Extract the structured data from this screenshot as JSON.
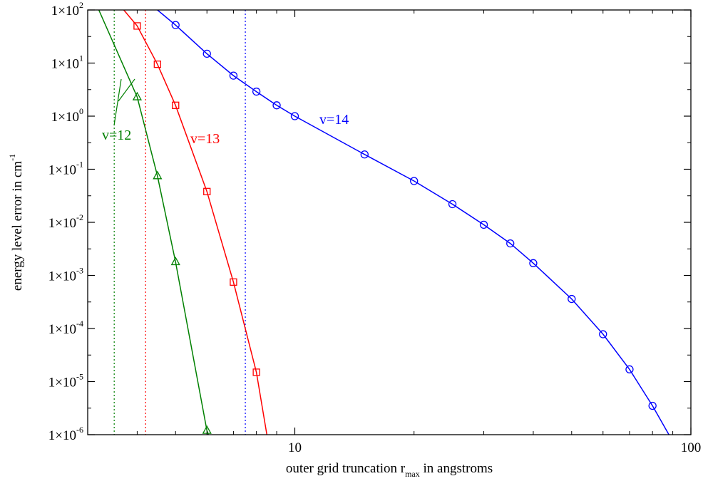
{
  "chart_data": {
    "type": "line",
    "xlabel": "outer grid truncation r",
    "xlabel_sub": "max",
    "xlabel_after": " in angstroms",
    "ylabel": "energy level error in cm",
    "ylabel_sup": "-1",
    "xscale": "log",
    "yscale": "log",
    "xlim": [
      3.0,
      100
    ],
    "ylim": [
      1e-06,
      100
    ],
    "grid": false,
    "x_ticks": [
      {
        "value": 10,
        "label": "10"
      },
      {
        "value": 100,
        "label": "100"
      }
    ],
    "y_ticks": [
      {
        "value": 100,
        "base": "1×10",
        "exp": "2"
      },
      {
        "value": 10,
        "base": "1×10",
        "exp": "1"
      },
      {
        "value": 1,
        "base": "1×10",
        "exp": "0"
      },
      {
        "value": 0.1,
        "base": "1×10",
        "exp": "-1"
      },
      {
        "value": 0.01,
        "base": "1×10",
        "exp": "-2"
      },
      {
        "value": 0.001,
        "base": "1×10",
        "exp": "-3"
      },
      {
        "value": 0.0001,
        "base": "1×10",
        "exp": "-4"
      },
      {
        "value": 1e-05,
        "base": "1×10",
        "exp": "-5"
      },
      {
        "value": 1e-06,
        "base": "1×10",
        "exp": "-6"
      }
    ],
    "series": [
      {
        "name": "v=12",
        "color": "#008000",
        "marker": "triangle",
        "line": [
          [
            3.2,
            100
          ],
          [
            4.0,
            2.3
          ],
          [
            4.5,
            0.075
          ],
          [
            5.0,
            0.0018
          ],
          [
            6.0,
            1.2e-06
          ],
          [
            6.05,
            1e-06
          ]
        ],
        "points": [
          [
            4.0,
            2.3
          ],
          [
            4.5,
            0.075
          ],
          [
            5.0,
            0.0018
          ],
          [
            6.0,
            1.2e-06
          ]
        ],
        "vline_x": 3.5,
        "label_value": "v=12"
      },
      {
        "name": "v=13",
        "color": "#ff0000",
        "marker": "square",
        "line": [
          [
            3.7,
            100
          ],
          [
            4.0,
            50
          ],
          [
            4.5,
            9.5
          ],
          [
            5.0,
            1.6
          ],
          [
            6.0,
            0.038
          ],
          [
            7.0,
            0.00075
          ],
          [
            8.0,
            1.5e-05
          ],
          [
            8.5,
            1e-06
          ]
        ],
        "points": [
          [
            4.0,
            50
          ],
          [
            4.5,
            9.5
          ],
          [
            5.0,
            1.6
          ],
          [
            6.0,
            0.038
          ],
          [
            7.0,
            0.00075
          ],
          [
            8.0,
            1.5e-05
          ]
        ],
        "vline_x": 4.2,
        "label_value": "v=13"
      },
      {
        "name": "v=14",
        "color": "#0000ff",
        "marker": "circle",
        "line": [
          [
            4.5,
            100
          ],
          [
            5.0,
            52
          ],
          [
            6.0,
            15
          ],
          [
            7.0,
            5.8
          ],
          [
            8.0,
            2.9
          ],
          [
            9.0,
            1.6
          ],
          [
            10.0,
            1.0
          ],
          [
            15.0,
            0.19
          ],
          [
            20.0,
            0.06
          ],
          [
            25.0,
            0.022
          ],
          [
            30.0,
            0.009
          ],
          [
            35.0,
            0.004
          ],
          [
            40.0,
            0.0017
          ],
          [
            50.0,
            0.00036
          ],
          [
            60.0,
            7.8e-05
          ],
          [
            70.0,
            1.7e-05
          ],
          [
            80.0,
            3.5e-06
          ],
          [
            88.0,
            1e-06
          ]
        ],
        "points": [
          [
            5.0,
            52
          ],
          [
            6.0,
            15
          ],
          [
            7.0,
            5.8
          ],
          [
            8.0,
            2.9
          ],
          [
            9.0,
            1.6
          ],
          [
            10.0,
            1.0
          ],
          [
            15.0,
            0.19
          ],
          [
            20.0,
            0.06
          ],
          [
            25.0,
            0.022
          ],
          [
            30.0,
            0.009
          ],
          [
            35.0,
            0.004
          ],
          [
            40.0,
            0.0017
          ],
          [
            50.0,
            0.00036
          ],
          [
            60.0,
            7.8e-05
          ],
          [
            70.0,
            1.7e-05
          ],
          [
            80.0,
            3.5e-06
          ]
        ],
        "vline_x": 7.5,
        "label_value": "v=14"
      }
    ]
  }
}
